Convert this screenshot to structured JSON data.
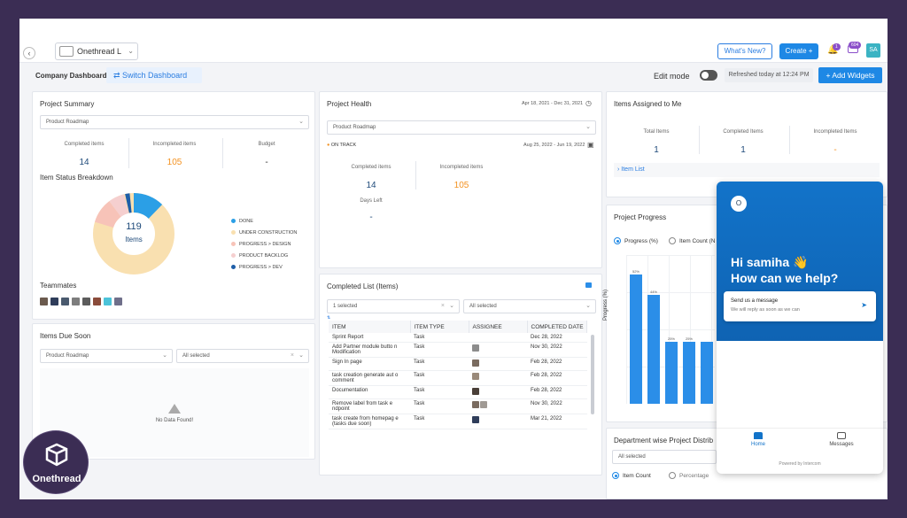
{
  "topbar": {
    "workspace_name": "Onethread L",
    "whats_new_label": "What's New?",
    "create_label": "Create +",
    "notif_badge": "1",
    "msg_badge": "604",
    "user_initials": "SA"
  },
  "subbar": {
    "title": "Company Dashboard",
    "switch_label": "Switch Dashboard",
    "edit_mode_label": "Edit mode",
    "refreshed_label": "Refreshed today at 12:24 PM",
    "add_widgets_label": "+ Add Widgets"
  },
  "project_summary": {
    "title": "Project Summary",
    "project_select": "Product Roadmap",
    "stats": [
      {
        "label": "Completed items",
        "value": "14"
      },
      {
        "label": "Incompleted items",
        "value": "105"
      },
      {
        "label": "Budget",
        "value": "-"
      }
    ],
    "breakdown_title": "Item Status Breakdown",
    "donut_center_value": "119",
    "donut_center_label": "Items",
    "legend": [
      {
        "label": "DONE",
        "color": "#2b9fe6"
      },
      {
        "label": "UNDER CONSTRUCTION",
        "color": "#f9e0b0"
      },
      {
        "label": "PROGRESS > DESIGN",
        "color": "#f7c3b8"
      },
      {
        "label": "PRODUCT BACKLOG",
        "color": "#f5cfcf"
      },
      {
        "label": "PROGRESS > DEV",
        "color": "#1e5ea8"
      }
    ],
    "teammates_title": "Teammates"
  },
  "items_due_soon": {
    "title": "Items Due Soon",
    "project_select": "Product Roadmap",
    "status_select": "All selected",
    "no_data": "No Data Found!"
  },
  "project_health": {
    "title": "Project Health",
    "date_range": "Apr 18, 2021 - Dec 31, 2021",
    "project_select": "Product Roadmap",
    "status": "ON TRACK",
    "sub_range": "Aug 25, 2022 - Jun 19, 2022",
    "stats": [
      {
        "label": "Completed items",
        "value": "14"
      },
      {
        "label": "Incompleted items",
        "value": "105"
      },
      {
        "label": "Days Left",
        "value": "-"
      }
    ]
  },
  "completed_list": {
    "title": "Completed List (Items)",
    "filter1": "1 selected",
    "filter2": "All selected",
    "columns": [
      "ITEM",
      "ITEM TYPE",
      "ASSIGNEE",
      "COMPLETED DATE"
    ],
    "rows": [
      {
        "item": "Sprint Report",
        "type": "Task",
        "date": "Dec 28, 2022"
      },
      {
        "item": "Add Partner module butto n Modification",
        "type": "Task",
        "date": "Nov 30, 2022"
      },
      {
        "item": "Sign In page",
        "type": "Task",
        "date": "Feb 28, 2022"
      },
      {
        "item": "task creation generate aut o comment",
        "type": "Task",
        "date": "Feb 28, 2022"
      },
      {
        "item": "Documentation",
        "type": "Task",
        "date": "Feb 28, 2022"
      },
      {
        "item": "Remove label from task e ndpoint",
        "type": "Task",
        "date": "Nov 30, 2022"
      },
      {
        "item": "task create from homepag e (tasks due soon)",
        "type": "Task",
        "date": "Mar 21, 2022"
      }
    ]
  },
  "items_assigned": {
    "title": "Items Assigned to Me",
    "stats": [
      {
        "label": "Total Items",
        "value": "1"
      },
      {
        "label": "Completed Items",
        "value": "1"
      },
      {
        "label": "Incompleted Items",
        "value": "-"
      }
    ],
    "item_list_label": "Item List"
  },
  "project_progress": {
    "title": "Project Progress",
    "option_progress": "Progress (%)",
    "option_count": "Item Count (N",
    "ylabel": "Progress (%)"
  },
  "chart_data": {
    "type": "bar",
    "categories": [
      "",
      "",
      "",
      "",
      "",
      ""
    ],
    "values": [
      52,
      44,
      25,
      25,
      25,
      1
    ],
    "data_labels": [
      "52%",
      "44%",
      "25%",
      "25%",
      "",
      ""
    ],
    "ylabel": "Progress (%)",
    "ylim": [
      0,
      60
    ]
  },
  "department": {
    "title": "Department wise Project Distrib",
    "select": "All selected",
    "option_count": "Item Count",
    "option_pct": "Percentage"
  },
  "intercom": {
    "logo": "O",
    "greeting_line1": "Hi samiha 👋",
    "greeting_line2": "How can we help?",
    "card_title": "Send us a message",
    "card_sub": "We will reply as soon as we can",
    "tab_home": "Home",
    "tab_messages": "Messages",
    "powered": "Powered by Intercom"
  },
  "brand": {
    "name": "Onethread"
  }
}
